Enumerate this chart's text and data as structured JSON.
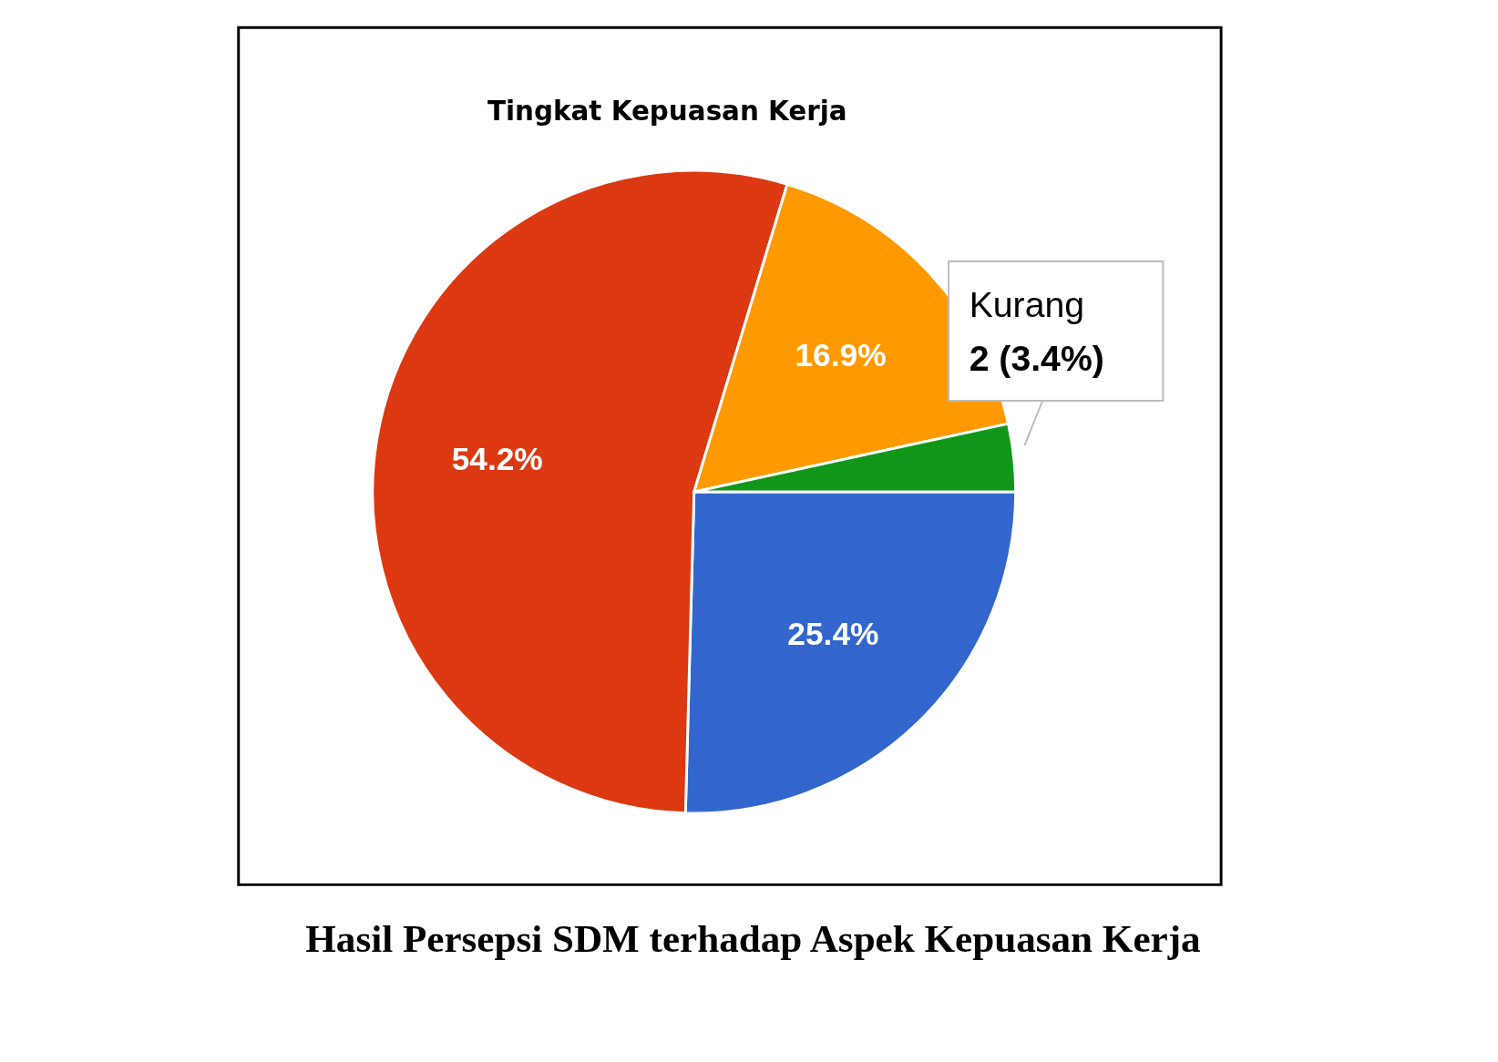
{
  "chart_data": {
    "type": "pie",
    "title": "Tingkat Kepuasan Kerja",
    "categories": [
      null,
      null,
      null,
      null
    ],
    "values": [
      25.4,
      54.2,
      16.9,
      3.4
    ],
    "colors": [
      "#3366cc",
      "#dc3912",
      "#ff9900",
      "#109618"
    ],
    "value_labels": [
      "25.4%",
      "54.2%",
      "16.9%",
      null
    ],
    "annotations": [
      "Kurang",
      "2 (3.4%)",
      "Hasil Persepsi SDM terhadap Aspek Kepuasan Kerja"
    ],
    "legend": false
  }
}
